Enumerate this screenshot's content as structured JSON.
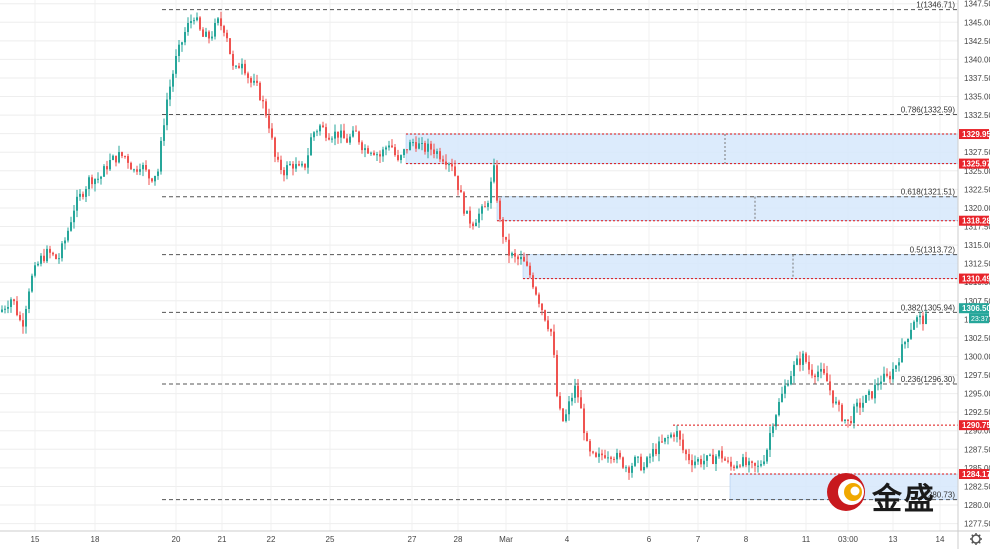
{
  "chart_data": {
    "type": "candlestick",
    "ylim": [
      1276.5,
      1348.0
    ],
    "y_ticks": [
      1277.5,
      1280.0,
      1282.5,
      1285.0,
      1287.5,
      1290.0,
      1292.5,
      1295.0,
      1297.5,
      1300.0,
      1302.5,
      1305.0,
      1307.5,
      1310.0,
      1312.5,
      1315.0,
      1317.5,
      1320.0,
      1322.5,
      1325.0,
      1327.5,
      1330.0,
      1332.5,
      1335.0,
      1337.5,
      1340.0,
      1342.5,
      1345.0,
      1347.5
    ],
    "x_ticks": [
      "15",
      "18",
      "20",
      "21",
      "22",
      "25",
      "27",
      "28",
      "Mar",
      "4",
      "6",
      "7",
      "8",
      "11",
      "03:00",
      "13",
      "14"
    ],
    "grid": true,
    "fib_levels": [
      {
        "label": "1(1346.71)",
        "value": 1346.71
      },
      {
        "label": "0.786(1332.59)",
        "value": 1332.59
      },
      {
        "label": "0.618(1321.51)",
        "value": 1321.51
      },
      {
        "label": "0.5(1313.72)",
        "value": 1313.72
      },
      {
        "label": "0.382(1305.94)",
        "value": 1305.94
      },
      {
        "label": "0.236(1296.30)",
        "value": 1296.3
      },
      {
        "label": "(1280.73)",
        "value": 1280.73
      }
    ],
    "red_levels": [
      {
        "label": "1329.95",
        "value": 1329.95
      },
      {
        "label": "1325.97",
        "value": 1325.97
      },
      {
        "label": "1318.28",
        "value": 1318.28
      },
      {
        "label": "1310.49",
        "value": 1310.49
      },
      {
        "label": "1290.75",
        "value": 1290.75
      },
      {
        "label": "1284.17",
        "value": 1284.17
      }
    ],
    "zones": [
      {
        "top": 1329.95,
        "bottom": 1325.97
      },
      {
        "top": 1321.51,
        "bottom": 1318.28
      },
      {
        "top": 1313.72,
        "bottom": 1310.49
      },
      {
        "top": 1284.17,
        "bottom": 1280.73
      }
    ],
    "current_price": "1306.50",
    "countdown": "23:37",
    "price_path": [
      [
        0,
        1306
      ],
      [
        12,
        1308
      ],
      [
        22,
        1304
      ],
      [
        30,
        1310
      ],
      [
        40,
        1313
      ],
      [
        48,
        1314
      ],
      [
        58,
        1313
      ],
      [
        66,
        1316
      ],
      [
        74,
        1320
      ],
      [
        82,
        1322
      ],
      [
        90,
        1324
      ],
      [
        100,
        1324
      ],
      [
        108,
        1326
      ],
      [
        118,
        1327
      ],
      [
        126,
        1327
      ],
      [
        134,
        1325
      ],
      [
        140,
        1326
      ],
      [
        150,
        1324
      ],
      [
        158,
        1325
      ],
      [
        166,
        1334
      ],
      [
        176,
        1340
      ],
      [
        186,
        1344
      ],
      [
        194,
        1346
      ],
      [
        202,
        1343
      ],
      [
        210,
        1343
      ],
      [
        218,
        1345
      ],
      [
        226,
        1344
      ],
      [
        234,
        1338
      ],
      [
        242,
        1340
      ],
      [
        250,
        1337
      ],
      [
        258,
        1336
      ],
      [
        268,
        1332
      ],
      [
        276,
        1326
      ],
      [
        284,
        1325
      ],
      [
        292,
        1326
      ],
      [
        300,
        1325
      ],
      [
        306,
        1326
      ],
      [
        312,
        1330
      ],
      [
        320,
        1331
      ],
      [
        328,
        1330
      ],
      [
        338,
        1330
      ],
      [
        346,
        1329
      ],
      [
        356,
        1330
      ],
      [
        364,
        1328
      ],
      [
        372,
        1328
      ],
      [
        380,
        1327
      ],
      [
        390,
        1329
      ],
      [
        398,
        1326
      ],
      [
        406,
        1328
      ],
      [
        414,
        1329
      ],
      [
        422,
        1328
      ],
      [
        432,
        1328
      ],
      [
        442,
        1327
      ],
      [
        452,
        1326
      ],
      [
        460,
        1322
      ],
      [
        466,
        1319
      ],
      [
        472,
        1318
      ],
      [
        478,
        1319
      ],
      [
        486,
        1320
      ],
      [
        494,
        1325
      ],
      [
        500,
        1318
      ],
      [
        508,
        1314
      ],
      [
        516,
        1313
      ],
      [
        522,
        1313
      ],
      [
        530,
        1311
      ],
      [
        538,
        1308
      ],
      [
        546,
        1305
      ],
      [
        552,
        1303
      ],
      [
        558,
        1293
      ],
      [
        564,
        1291
      ],
      [
        570,
        1294
      ],
      [
        576,
        1296
      ],
      [
        582,
        1292
      ],
      [
        588,
        1287
      ],
      [
        596,
        1286
      ],
      [
        604,
        1287
      ],
      [
        612,
        1287
      ],
      [
        620,
        1286
      ],
      [
        628,
        1285
      ],
      [
        636,
        1286
      ],
      [
        644,
        1285
      ],
      [
        652,
        1287
      ],
      [
        660,
        1288
      ],
      [
        668,
        1289
      ],
      [
        676,
        1290
      ],
      [
        684,
        1287
      ],
      [
        692,
        1286
      ],
      [
        700,
        1286
      ],
      [
        710,
        1286
      ],
      [
        720,
        1287
      ],
      [
        730,
        1285
      ],
      [
        740,
        1286
      ],
      [
        750,
        1285
      ],
      [
        758,
        1285
      ],
      [
        766,
        1287
      ],
      [
        772,
        1291
      ],
      [
        780,
        1294
      ],
      [
        788,
        1297
      ],
      [
        796,
        1299
      ],
      [
        804,
        1300
      ],
      [
        810,
        1298
      ],
      [
        818,
        1298
      ],
      [
        826,
        1297
      ],
      [
        834,
        1294
      ],
      [
        842,
        1292
      ],
      [
        848,
        1291
      ],
      [
        856,
        1293
      ],
      [
        864,
        1294
      ],
      [
        872,
        1295
      ],
      [
        880,
        1297
      ],
      [
        888,
        1297
      ],
      [
        896,
        1299
      ],
      [
        902,
        1301
      ],
      [
        908,
        1303
      ],
      [
        914,
        1305
      ],
      [
        920,
        1305
      ],
      [
        926,
        1305
      ]
    ]
  },
  "logo": {
    "text": "金盛"
  }
}
